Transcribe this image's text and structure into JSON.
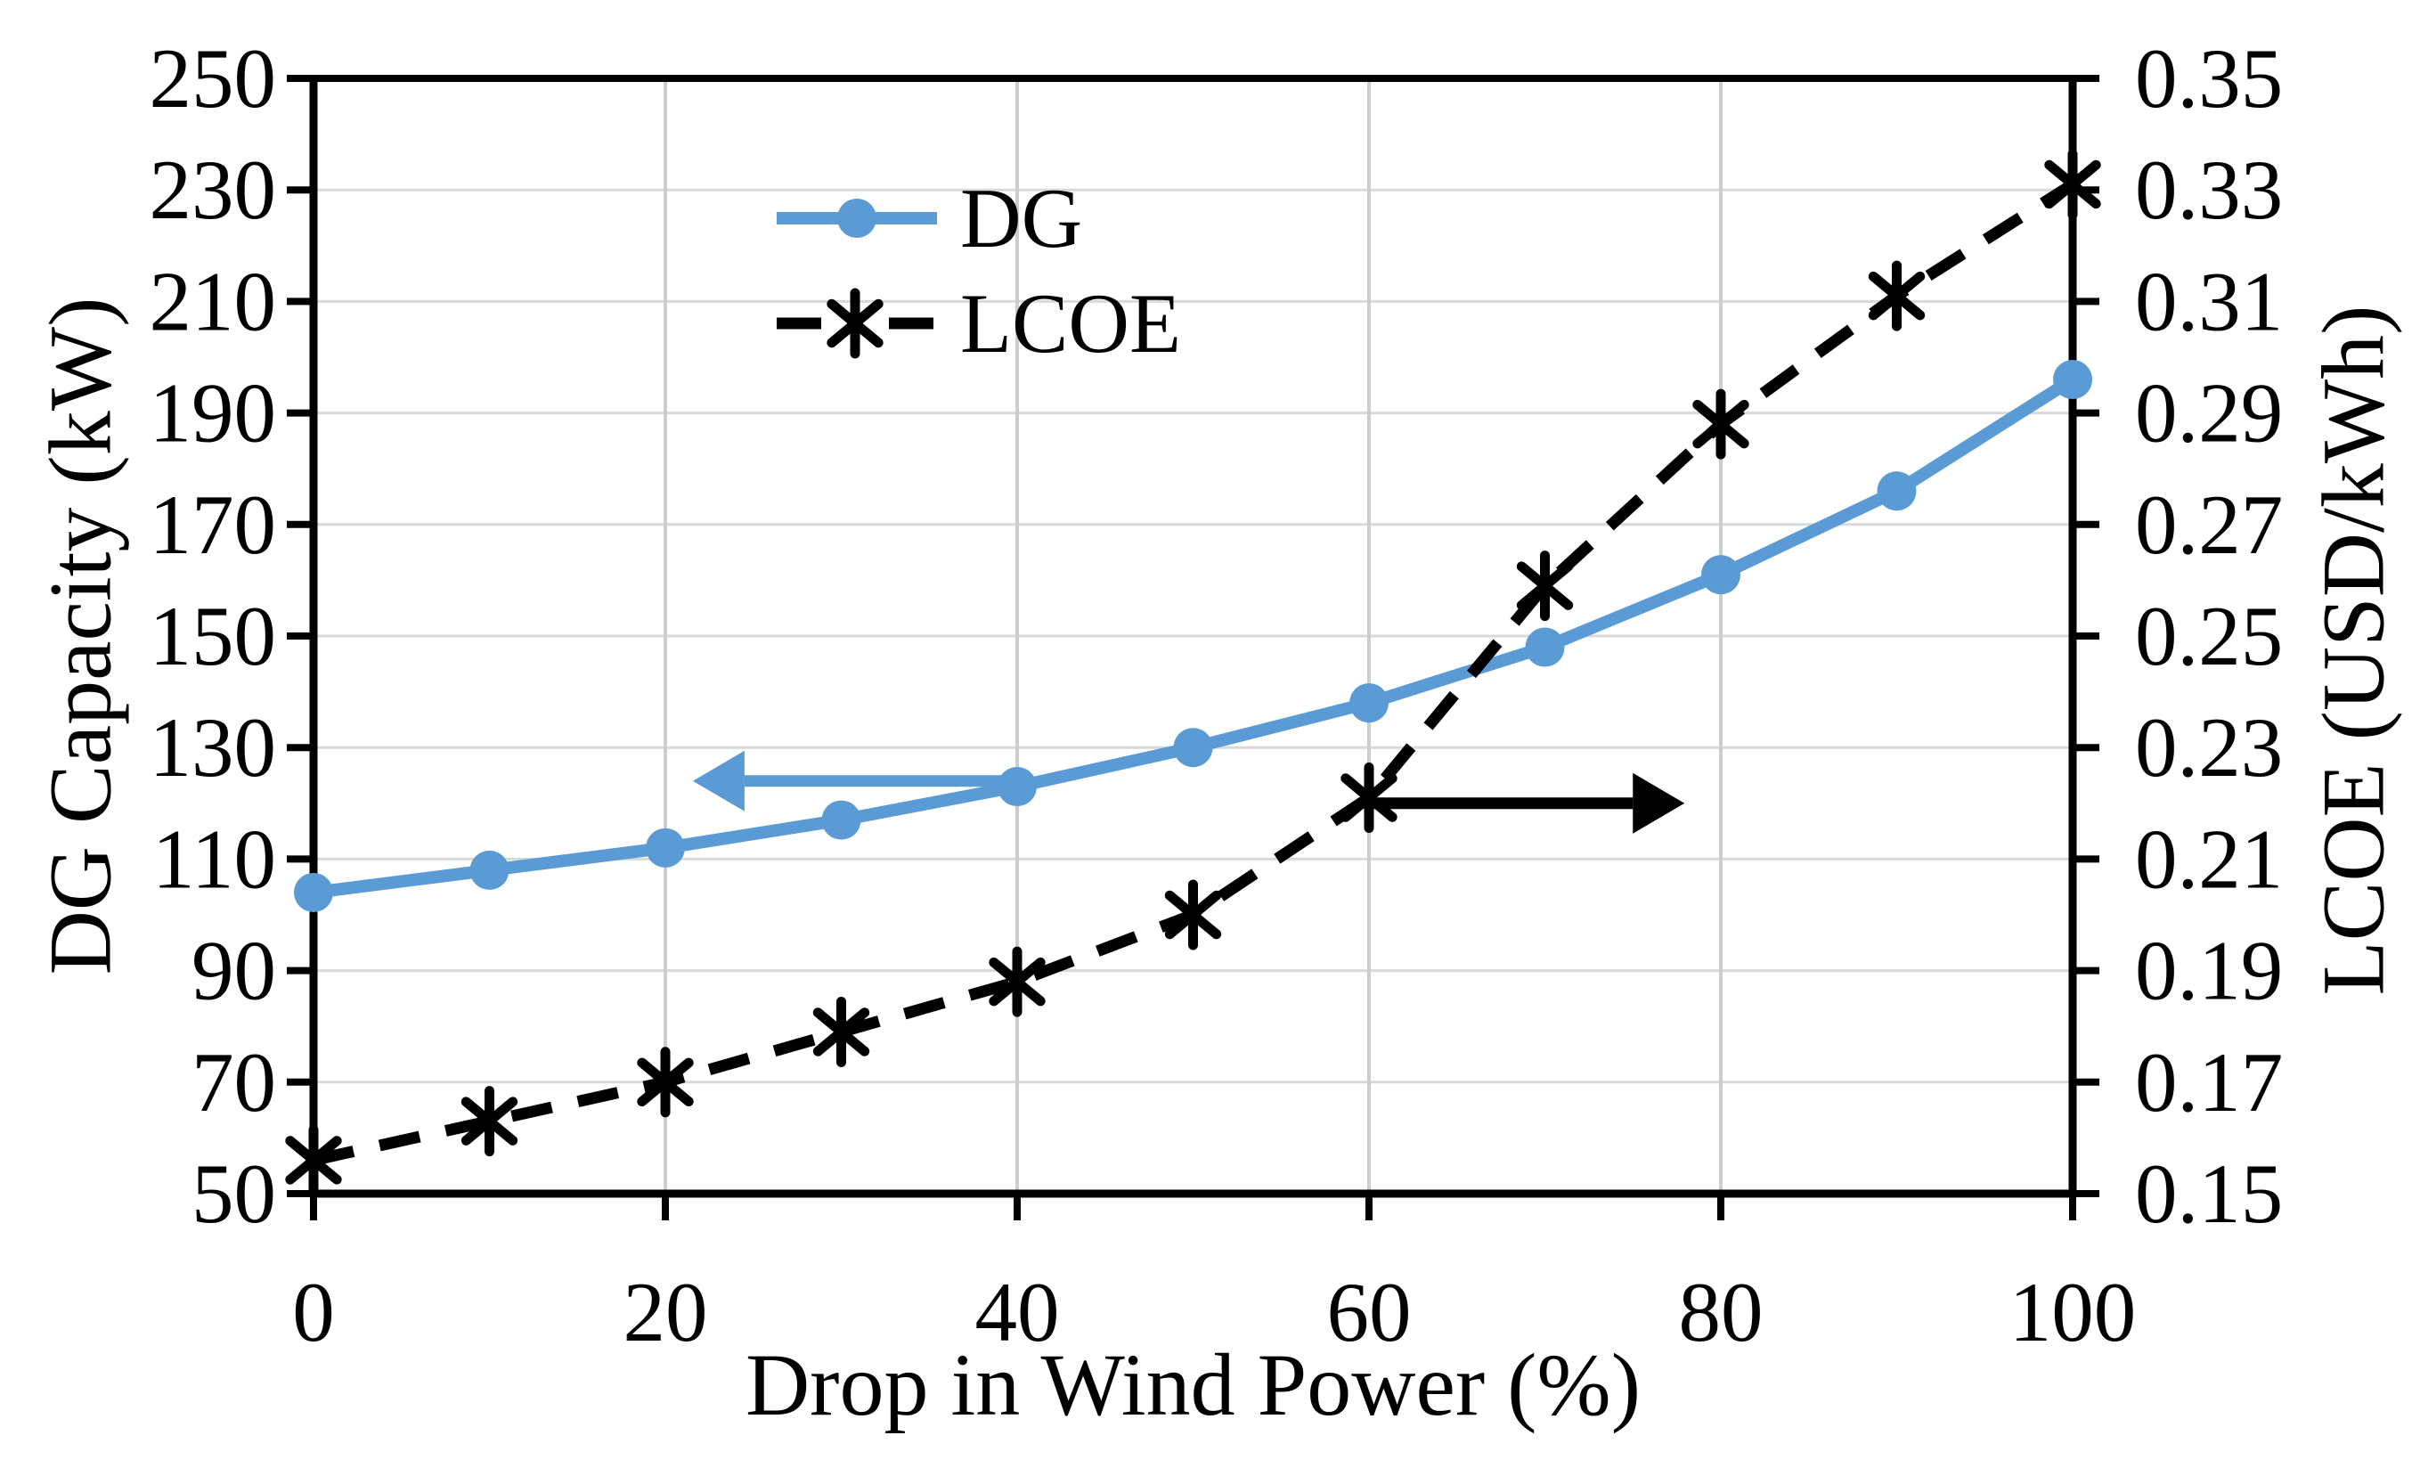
{
  "figure": {
    "background": "#ffffff",
    "accent_blue": "#5B9BD5",
    "line_black": "#000000",
    "grid_color_h": "#D9D9D9",
    "grid_color_v": "#CDCDCD"
  },
  "chart_data": {
    "type": "line",
    "title": "",
    "xlabel": "Drop in Wind Power (%)",
    "x": [
      0,
      10,
      20,
      30,
      40,
      50,
      60,
      70,
      80,
      90,
      100
    ],
    "x_tick_labels": [
      "0",
      "20",
      "40",
      "60",
      "80",
      "100"
    ],
    "x_tick_values": [
      0,
      20,
      40,
      60,
      80,
      100
    ],
    "x_gridline_values": [
      20,
      40,
      60,
      80
    ],
    "xlim": [
      0,
      100
    ],
    "grid": {
      "horizontal": true,
      "vertical": true
    },
    "left_axis": {
      "label": "DG Capacity (kW)",
      "min": 50,
      "max": 250,
      "step": 20,
      "tick_labels": [
        "250",
        "230",
        "210",
        "190",
        "170",
        "150",
        "130",
        "110",
        "90",
        "70",
        "50"
      ]
    },
    "right_axis": {
      "label": "LCOE (USD/kWh)",
      "min": 0.15,
      "max": 0.35,
      "step": 0.02,
      "tick_labels": [
        "0.35",
        "0.33",
        "0.31",
        "0.29",
        "0.27",
        "0.25",
        "0.23",
        "0.21",
        "0.19",
        "0.17",
        "0.15"
      ]
    },
    "series": [
      {
        "name": "DG",
        "axis": "left",
        "color": "#5B9BD5",
        "style": "solid",
        "marker": "circle",
        "values": [
          104,
          108,
          112,
          117,
          123,
          130,
          138,
          148,
          161,
          176,
          196
        ]
      },
      {
        "name": "LCOE",
        "axis": "right",
        "color": "#000000",
        "style": "dashed",
        "marker": "asterisk",
        "values": [
          0.156,
          0.163,
          0.17,
          0.179,
          0.188,
          0.2,
          0.221,
          0.259,
          0.288,
          0.311,
          0.331
        ]
      }
    ],
    "legend": {
      "position": "upper-left-inset",
      "entries": [
        {
          "label": "DG",
          "color": "#5B9BD5",
          "style": "solid",
          "marker": "circle"
        },
        {
          "label": "LCOE",
          "color": "#000000",
          "style": "dashed",
          "marker": "asterisk"
        }
      ]
    },
    "annotations": [
      {
        "type": "arrow",
        "series": "DG",
        "direction": "left",
        "color": "#5B9BD5",
        "from_x": 40,
        "to_x": 24.5,
        "at_left_value": 124,
        "meaning": "DG curve reads on left axis"
      },
      {
        "type": "arrow",
        "series": "LCOE",
        "direction": "right",
        "color": "#000000",
        "from_x": 60,
        "to_x": 75,
        "at_right_value": 0.22,
        "meaning": "LCOE curve reads on right axis"
      }
    ]
  }
}
